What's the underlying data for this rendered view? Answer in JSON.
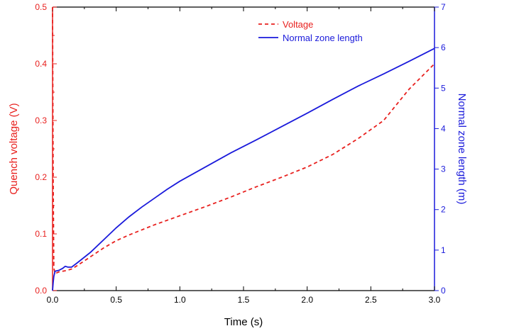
{
  "chart_data": {
    "type": "line",
    "xlabel": "Time (s)",
    "ylabel_left": "Quench voltage (V)",
    "ylabel_right": "Normal zone length (m)",
    "xlim": [
      0,
      3.0
    ],
    "ylim_left": [
      0,
      0.5
    ],
    "ylim_right": [
      0,
      7
    ],
    "x_ticks": [
      "0.0",
      "0.5",
      "1.0",
      "1.5",
      "2.0",
      "2.5",
      "3.0"
    ],
    "y_left_ticks": [
      "0.0",
      "0.1",
      "0.2",
      "0.3",
      "0.4",
      "0.5"
    ],
    "y_right_ticks": [
      "0",
      "1",
      "2",
      "3",
      "4",
      "5",
      "6",
      "7"
    ],
    "grid": false,
    "legend_position": "top-right",
    "left_axis_color": "#e8201e",
    "right_axis_color": "#1a1adb",
    "series": [
      {
        "name": "Voltage",
        "axis": "left",
        "style": "dashed",
        "color": "#e8201e",
        "x": [
          0.0,
          0.005,
          0.01,
          0.02,
          0.05,
          0.1,
          0.15,
          0.2,
          0.3,
          0.4,
          0.5,
          0.6,
          0.7,
          0.8,
          0.9,
          1.0,
          1.2,
          1.4,
          1.6,
          1.8,
          2.0,
          2.2,
          2.4,
          2.6,
          2.8,
          3.0
        ],
        "y": [
          0.5,
          0.2,
          0.04,
          0.03,
          0.033,
          0.035,
          0.038,
          0.045,
          0.06,
          0.075,
          0.088,
          0.098,
          0.107,
          0.116,
          0.124,
          0.132,
          0.148,
          0.165,
          0.183,
          0.2,
          0.218,
          0.24,
          0.268,
          0.3,
          0.355,
          0.4
        ]
      },
      {
        "name": "Normal zone length",
        "axis": "right",
        "style": "solid",
        "color": "#1a1adb",
        "x": [
          0.0,
          0.005,
          0.01,
          0.02,
          0.05,
          0.08,
          0.1,
          0.12,
          0.15,
          0.2,
          0.3,
          0.4,
          0.5,
          0.6,
          0.7,
          0.8,
          0.9,
          1.0,
          1.2,
          1.4,
          1.6,
          1.8,
          2.0,
          2.2,
          2.4,
          2.6,
          2.8,
          3.0
        ],
        "y": [
          0.0,
          0.2,
          0.35,
          0.48,
          0.5,
          0.55,
          0.6,
          0.58,
          0.58,
          0.7,
          0.95,
          1.25,
          1.55,
          1.82,
          2.06,
          2.28,
          2.5,
          2.7,
          3.05,
          3.4,
          3.72,
          4.05,
          4.38,
          4.72,
          5.05,
          5.35,
          5.66,
          5.98
        ]
      }
    ]
  }
}
